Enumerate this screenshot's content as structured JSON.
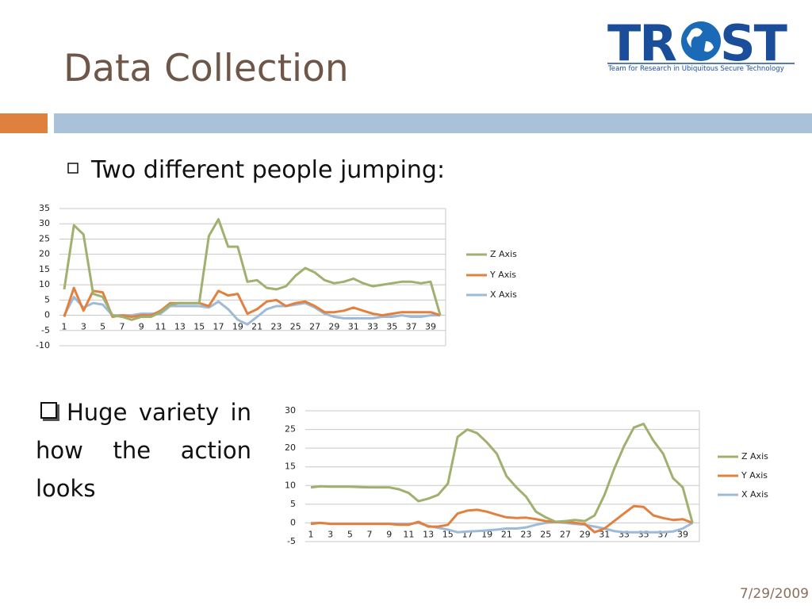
{
  "title": "Data Collection",
  "logo": {
    "letters": [
      "TR",
      "ST"
    ],
    "tagline": "Team for Research in Ubiquitous Secure Technology"
  },
  "bullets": [
    "Two different people jumping:",
    "Huge  variety in how the action looks"
  ],
  "date": "7/29/2009",
  "chart_data": [
    {
      "type": "line",
      "categories": [
        1,
        null,
        3,
        null,
        5,
        null,
        7,
        null,
        9,
        null,
        11,
        null,
        13,
        null,
        15,
        null,
        17,
        null,
        19,
        null,
        21,
        null,
        23,
        null,
        25,
        null,
        27,
        null,
        29,
        null,
        31,
        null,
        33,
        null,
        35,
        null,
        37,
        null,
        39,
        null
      ],
      "ylim": [
        -10,
        35
      ],
      "yticks": [
        -10,
        -5,
        0,
        5,
        10,
        15,
        20,
        25,
        30,
        35
      ],
      "grid": true,
      "series": [
        {
          "name": "Z Axis",
          "color": "#9fb06f",
          "values": [
            8.5,
            29.5,
            26.5,
            7,
            6,
            0,
            -0.5,
            -1.5,
            -0.5,
            -0.5,
            1,
            3.5,
            4,
            4,
            4,
            26,
            31.5,
            22.5,
            22.5,
            11,
            11.5,
            9,
            8.5,
            9.5,
            13,
            15.5,
            14,
            11.5,
            10.5,
            11,
            12,
            10.5,
            9.5,
            10,
            10.5,
            11,
            11,
            10.5,
            11,
            0
          ]
        },
        {
          "name": "Y Axis",
          "color": "#e2803f",
          "values": [
            -0.5,
            9,
            1.5,
            8,
            7.5,
            -0.5,
            0,
            -0.5,
            0,
            0,
            1.5,
            4,
            4,
            4,
            4,
            3,
            8,
            6.5,
            7,
            0.5,
            2,
            4.5,
            5,
            3,
            4,
            4.5,
            3,
            1,
            1,
            1.5,
            2.5,
            1.5,
            0.5,
            0,
            0.5,
            1,
            1,
            1,
            1,
            0
          ]
        },
        {
          "name": "X Axis",
          "color": "#9dbbd8",
          "values": [
            0,
            6,
            2.5,
            4,
            3.5,
            0,
            0,
            0,
            0.5,
            0.5,
            0.5,
            3,
            3,
            3,
            3,
            2.5,
            4.5,
            2,
            -1.5,
            -3,
            -0.5,
            2,
            3,
            3,
            3.5,
            4,
            2.5,
            0.5,
            -0.5,
            -1,
            -1,
            -1,
            -1,
            -0.5,
            -0.5,
            0,
            -0.5,
            -0.5,
            0,
            0
          ]
        }
      ]
    },
    {
      "type": "line",
      "categories": [
        1,
        null,
        3,
        null,
        5,
        null,
        7,
        null,
        9,
        null,
        11,
        null,
        13,
        null,
        15,
        null,
        17,
        null,
        19,
        null,
        21,
        null,
        23,
        null,
        25,
        null,
        27,
        null,
        29,
        null,
        31,
        null,
        33,
        null,
        35,
        null,
        37,
        null,
        39,
        null
      ],
      "ylim": [
        -5,
        30
      ],
      "yticks": [
        -5,
        0,
        5,
        10,
        15,
        20,
        25,
        30
      ],
      "grid": true,
      "series": [
        {
          "name": "Z Axis",
          "color": "#9fb06f",
          "values": [
            9.5,
            9.8,
            9.7,
            9.7,
            9.7,
            9.6,
            9.5,
            9.5,
            9.5,
            9,
            8,
            5.8,
            6.5,
            7.5,
            10.5,
            23,
            25,
            24,
            21.5,
            18.5,
            12.5,
            9.5,
            7,
            3,
            1.5,
            0.3,
            0.5,
            0.8,
            0.5,
            2,
            7.5,
            14.5,
            20.5,
            25.5,
            26.5,
            22,
            18.5,
            12,
            9.5,
            0
          ]
        },
        {
          "name": "Y Axis",
          "color": "#e2803f",
          "values": [
            -0.3,
            0,
            -0.3,
            -0.3,
            -0.3,
            -0.3,
            -0.3,
            -0.3,
            -0.3,
            -0.5,
            -0.5,
            0.3,
            -1,
            -1,
            -0.5,
            2.5,
            3.3,
            3.5,
            3,
            2.2,
            1.5,
            1.3,
            1.4,
            1,
            0.5,
            0.2,
            0.3,
            0,
            -0.3,
            -2.5,
            -1.5,
            0.5,
            2.5,
            4.5,
            4.3,
            2,
            1.3,
            0.8,
            1,
            0
          ]
        },
        {
          "name": "X Axis",
          "color": "#9dbbd8",
          "values": [
            0,
            0,
            -0.2,
            -0.2,
            -0.2,
            -0.2,
            -0.2,
            -0.2,
            -0.2,
            -0.3,
            -0.3,
            0,
            -0.8,
            -1.3,
            -1.8,
            -2.5,
            -2.3,
            -2.2,
            -2,
            -1.8,
            -1.5,
            -1.5,
            -1.2,
            -0.5,
            0,
            0.2,
            0,
            -0.3,
            -0.5,
            -1,
            -1.5,
            -2.2,
            -2.5,
            -2.5,
            -2.5,
            -2.5,
            -2.5,
            -2.3,
            -1.5,
            0
          ]
        }
      ]
    }
  ]
}
